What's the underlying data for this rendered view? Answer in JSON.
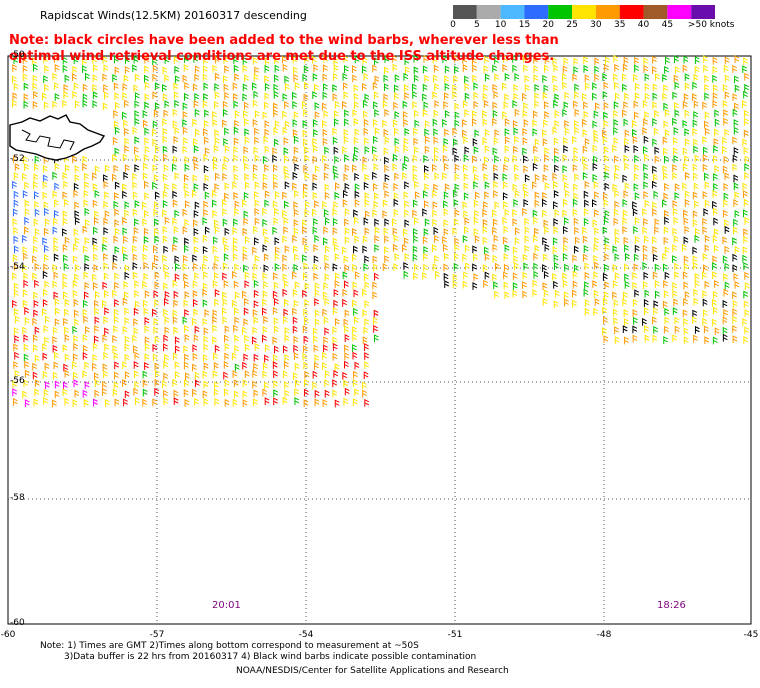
{
  "title": "Rapidscat Winds(12.5KM) 20160317 descending",
  "note": "Note: black circles have been added to the wind barbs, wherever less than optimal wind retrieval conditions are met due to the ISS altitude changes.",
  "legend": {
    "labels": [
      "0",
      "5",
      "10",
      "15",
      "20",
      "25",
      "30",
      "35",
      "40",
      "45",
      ">50 knots"
    ],
    "colors": [
      "#555555",
      "#aaaaaa",
      "#4bb8ff",
      "#2e6cff",
      "#00c400",
      "#ffe400",
      "#ff9a00",
      "#ff0000",
      "#a05a2a",
      "#ff00ff",
      "#6a0dad"
    ]
  },
  "map": {
    "lon_labels": [
      "-60",
      "-57",
      "-54",
      "-51",
      "-48",
      "-45"
    ],
    "lat_labels": [
      "-50",
      "-52",
      "-54",
      "-56",
      "-58",
      "-60"
    ],
    "time_labels": [
      "20:01",
      "18:26"
    ],
    "barb_colors": [
      "#ffe400",
      "#ff9a00",
      "#00c400",
      "#000000",
      "#ff0000",
      "#2e6cff",
      "#ff00ff"
    ]
  },
  "footer": {
    "line1": "Note: 1) Times are GMT 2)Times along bottom correspond to measurement at ~50S",
    "line2": "3)Data buffer is 22 hrs from 20160317 4) Black wind barbs indicate possible contamination",
    "line3": "NOAA/NESDIS/Center for Satellite Applications and Research"
  }
}
